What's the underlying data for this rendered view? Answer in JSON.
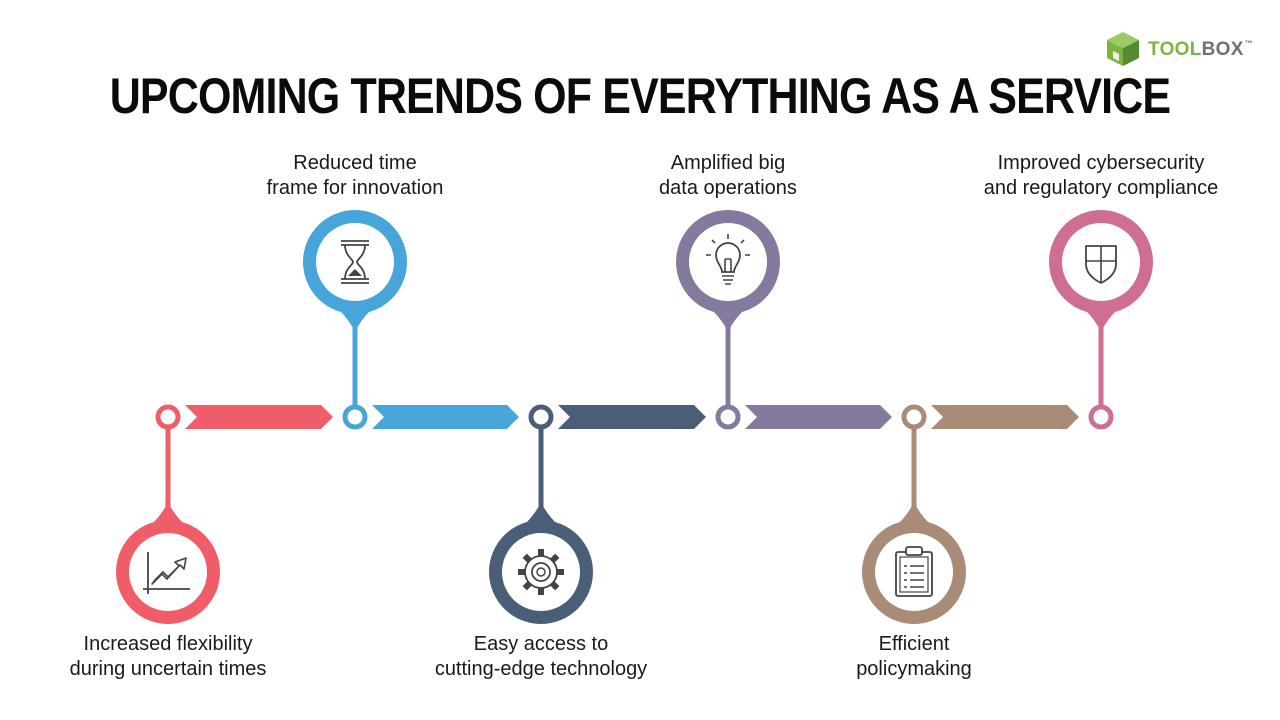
{
  "brand": {
    "part1": "TOOL",
    "part2": "BOX",
    "tm": "™",
    "colors": {
      "tool": "#7cb342",
      "box": "#6b7277"
    }
  },
  "title": "UPCOMING TRENDS OF EVERYTHING AS A SERVICE",
  "trends": [
    {
      "lines": [
        "Increased flexibility",
        "during uncertain times"
      ],
      "icon": "growth-chart-icon",
      "color": "#ef5e68",
      "position": "below"
    },
    {
      "lines": [
        "Reduced time",
        "frame for innovation"
      ],
      "icon": "hourglass-icon",
      "color": "#47a5d9",
      "position": "above"
    },
    {
      "lines": [
        "Easy access to",
        "cutting-edge technology"
      ],
      "icon": "gear-icon",
      "color": "#4a5e78",
      "position": "below"
    },
    {
      "lines": [
        "Amplified big",
        "data operations"
      ],
      "icon": "lightbulb-icon",
      "color": "#857a9e",
      "position": "above"
    },
    {
      "lines": [
        "Efficient",
        "policymaking"
      ],
      "icon": "clipboard-icon",
      "color": "#a98b78",
      "position": "below"
    },
    {
      "lines": [
        "Improved cybersecurity",
        "and regulatory compliance"
      ],
      "icon": "shield-icon",
      "color": "#cf6e95",
      "position": "above"
    }
  ]
}
